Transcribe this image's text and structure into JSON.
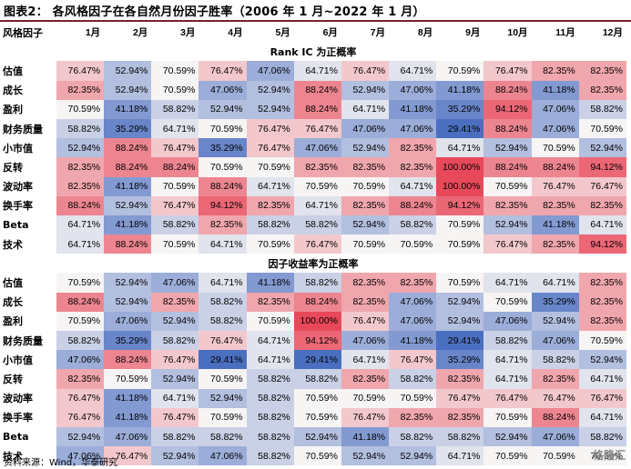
{
  "title": "图表2：  各风格因子在各自然月份因子胜率（2006 年 1 月~2022 年 1 月）",
  "corner_label": "风格因子",
  "months": [
    "1月",
    "2月",
    "3月",
    "4月",
    "5月",
    "6月",
    "7月",
    "8月",
    "9月",
    "10月",
    "11月",
    "12月"
  ],
  "sections": [
    {
      "heading": "Rank IC 为正概率",
      "rows": [
        {
          "factor": "估值",
          "values": [
            76.47,
            52.94,
            70.59,
            76.47,
            47.06,
            64.71,
            76.47,
            64.71,
            70.59,
            76.47,
            82.35,
            82.35
          ]
        },
        {
          "factor": "成长",
          "values": [
            82.35,
            52.94,
            70.59,
            47.06,
            52.94,
            88.24,
            52.94,
            47.06,
            41.18,
            88.24,
            41.18,
            82.35
          ]
        },
        {
          "factor": "盈利",
          "values": [
            70.59,
            41.18,
            58.82,
            52.94,
            52.94,
            88.24,
            64.71,
            41.18,
            35.29,
            94.12,
            47.06,
            58.82
          ]
        },
        {
          "factor": "财务质量",
          "values": [
            58.82,
            35.29,
            64.71,
            70.59,
            76.47,
            76.47,
            47.06,
            47.06,
            29.41,
            88.24,
            47.06,
            70.59
          ]
        },
        {
          "factor": "小市值",
          "values": [
            52.94,
            88.24,
            76.47,
            35.29,
            76.47,
            47.06,
            52.94,
            82.35,
            64.71,
            52.94,
            70.59,
            52.94
          ]
        },
        {
          "factor": "反转",
          "values": [
            82.35,
            88.24,
            88.24,
            70.59,
            70.59,
            82.35,
            82.35,
            82.35,
            100.0,
            88.24,
            88.24,
            94.12
          ]
        },
        {
          "factor": "波动率",
          "values": [
            82.35,
            41.18,
            70.59,
            88.24,
            64.71,
            70.59,
            70.59,
            64.71,
            100.0,
            70.59,
            76.47,
            76.47
          ]
        },
        {
          "factor": "换手率",
          "values": [
            88.24,
            52.94,
            76.47,
            94.12,
            82.35,
            64.71,
            82.35,
            88.24,
            94.12,
            82.35,
            82.35,
            82.35
          ]
        },
        {
          "factor": "Beta",
          "values": [
            64.71,
            41.18,
            58.82,
            82.35,
            58.82,
            58.82,
            52.94,
            58.82,
            70.59,
            52.94,
            41.18,
            64.71
          ]
        },
        {
          "factor": "技术",
          "values": [
            64.71,
            88.24,
            70.59,
            64.71,
            70.59,
            76.47,
            70.59,
            70.59,
            70.59,
            76.47,
            82.35,
            94.12
          ]
        }
      ]
    },
    {
      "heading": "因子收益率为正概率",
      "rows": [
        {
          "factor": "估值",
          "values": [
            70.59,
            52.94,
            47.06,
            64.71,
            41.18,
            58.82,
            82.35,
            82.35,
            70.59,
            64.71,
            64.71,
            82.35
          ]
        },
        {
          "factor": "成长",
          "values": [
            88.24,
            52.94,
            82.35,
            58.82,
            82.35,
            88.24,
            82.35,
            47.06,
            52.94,
            70.59,
            35.29,
            82.35
          ]
        },
        {
          "factor": "盈利",
          "values": [
            70.59,
            47.06,
            52.94,
            58.82,
            70.59,
            100.0,
            76.47,
            47.06,
            52.94,
            47.06,
            52.94,
            82.35
          ]
        },
        {
          "factor": "财务质量",
          "values": [
            58.82,
            35.29,
            58.82,
            76.47,
            64.71,
            94.12,
            47.06,
            41.18,
            29.41,
            58.82,
            47.06,
            70.59
          ]
        },
        {
          "factor": "小市值",
          "values": [
            47.06,
            88.24,
            76.47,
            29.41,
            64.71,
            29.41,
            64.71,
            76.47,
            35.29,
            64.71,
            58.82,
            52.94
          ]
        },
        {
          "factor": "反转",
          "values": [
            82.35,
            70.59,
            52.94,
            70.59,
            58.82,
            58.82,
            82.35,
            58.82,
            82.35,
            64.71,
            82.35,
            64.71
          ]
        },
        {
          "factor": "波动率",
          "values": [
            76.47,
            41.18,
            64.71,
            52.94,
            58.82,
            70.59,
            70.59,
            70.59,
            76.47,
            76.47,
            76.47,
            76.47
          ]
        },
        {
          "factor": "换手率",
          "values": [
            76.47,
            41.18,
            76.47,
            70.59,
            58.82,
            70.59,
            76.47,
            82.35,
            82.35,
            70.59,
            88.24,
            64.71
          ]
        },
        {
          "factor": "Beta",
          "values": [
            52.94,
            47.06,
            58.82,
            58.82,
            58.82,
            52.94,
            41.18,
            58.82,
            58.82,
            52.94,
            47.06,
            58.82
          ]
        },
        {
          "factor": "技术",
          "values": [
            47.06,
            76.47,
            52.94,
            47.06,
            58.82,
            70.59,
            52.94,
            52.94,
            64.71,
            70.59,
            70.59,
            70.59
          ]
        }
      ]
    }
  ],
  "source": "资料来源：Wind，华泰研究",
  "watermark": "格隆汇",
  "colors": {
    "low": "#4a6fc0",
    "mid": "#f7f4f4",
    "high": "#e8495a",
    "title_rule": "#7a1f2b"
  }
}
